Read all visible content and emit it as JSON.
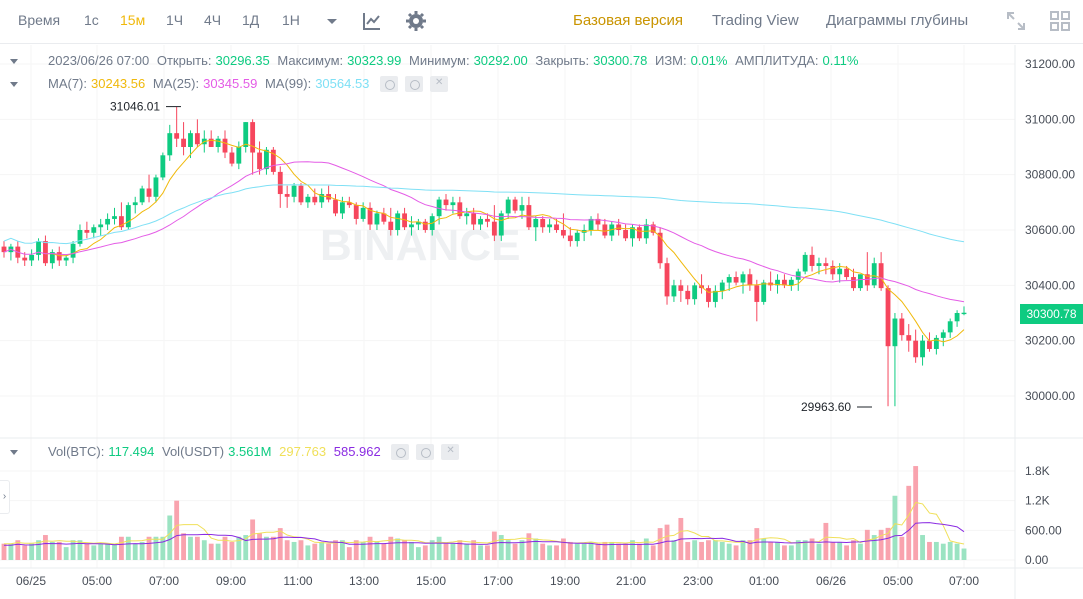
{
  "toolbar": {
    "time_label": "Время",
    "intervals": [
      "1с",
      "15м",
      "1Ч",
      "4Ч",
      "1Д",
      "1Н"
    ],
    "active_interval": "15м",
    "views": [
      "Базовая версия",
      "Trading View",
      "Диаграммы глубины"
    ],
    "active_view": "Базовая версия"
  },
  "ohlc": {
    "date": "2023/06/26 07:00",
    "open_label": "Открыть:",
    "open": "30296.35",
    "high_label": "Максимум:",
    "high": "30323.99",
    "low_label": "Минимум:",
    "low": "30292.00",
    "close_label": "Закрыть:",
    "close": "30300.78",
    "change_label": "ИЗМ:",
    "change": "0.01%",
    "amplitude_label": "АМПЛИТУДА:",
    "amplitude": "0.11%"
  },
  "ma": {
    "ma7_label": "MA(7):",
    "ma7": "30243.56",
    "ma25_label": "MA(25):",
    "ma25": "30345.59",
    "ma99_label": "MA(99):",
    "ma99": "30564.53"
  },
  "vol": {
    "btc_label": "Vol(BTC):",
    "btc": "117.494",
    "usdt_label": "Vol(USDT)",
    "usdt": "3.561M",
    "v1": "297.763",
    "v2": "585.962"
  },
  "watermark": "BINANCE",
  "current_price": "30300.78",
  "max_marker": "31046.01",
  "min_marker": "29963.60",
  "colors": {
    "up": "#0ecb81",
    "down": "#f6465d",
    "ma7": "#f0b90b",
    "ma25": "#e45ce6",
    "ma99": "#7fe0f5",
    "vol_ma1": "#f0e05a",
    "vol_ma2": "#8a2be2"
  },
  "chart_data": {
    "type": "candlestick",
    "price_axis": [
      "31200.00",
      "31000.00",
      "30800.00",
      "30600.00",
      "30400.00",
      "30200.00",
      "30000.00"
    ],
    "vol_axis": [
      "1.8K",
      "1.2K",
      "600.00",
      "0.00"
    ],
    "time_axis": [
      "06/25",
      "05:00",
      "07:00",
      "09:00",
      "11:00",
      "13:00",
      "15:00",
      "17:00",
      "19:00",
      "21:00",
      "23:00",
      "01:00",
      "06/26",
      "05:00",
      "07:00"
    ],
    "ylim": [
      29900,
      31250
    ],
    "candles": [
      [
        30540,
        30560,
        30500,
        30520
      ],
      [
        30520,
        30550,
        30490,
        30540
      ],
      [
        30540,
        30560,
        30480,
        30500
      ],
      [
        30500,
        30520,
        30470,
        30490
      ],
      [
        30490,
        30530,
        30470,
        30510
      ],
      [
        30510,
        30570,
        30490,
        30560
      ],
      [
        30560,
        30580,
        30470,
        30480
      ],
      [
        30480,
        30530,
        30460,
        30520
      ],
      [
        30520,
        30540,
        30470,
        30490
      ],
      [
        30490,
        30510,
        30470,
        30500
      ],
      [
        30500,
        30560,
        30480,
        30550
      ],
      [
        30550,
        30620,
        30540,
        30600
      ],
      [
        30600,
        30630,
        30570,
        30590
      ],
      [
        30590,
        30620,
        30570,
        30610
      ],
      [
        30610,
        30640,
        30580,
        30620
      ],
      [
        30620,
        30660,
        30600,
        30640
      ],
      [
        30640,
        30680,
        30620,
        30650
      ],
      [
        30650,
        30700,
        30600,
        30610
      ],
      [
        30610,
        30700,
        30600,
        30690
      ],
      [
        30690,
        30720,
        30660,
        30700
      ],
      [
        30700,
        30760,
        30690,
        30750
      ],
      [
        30750,
        30800,
        30700,
        30720
      ],
      [
        30720,
        30800,
        30700,
        30790
      ],
      [
        30790,
        30880,
        30780,
        30870
      ],
      [
        30870,
        30980,
        30850,
        30950
      ],
      [
        30950,
        31046,
        30900,
        30930
      ],
      [
        30930,
        30990,
        30870,
        30900
      ],
      [
        30900,
        30960,
        30860,
        30950
      ],
      [
        30950,
        31000,
        30900,
        30910
      ],
      [
        30910,
        30960,
        30880,
        30930
      ],
      [
        30930,
        30960,
        30900,
        30900
      ],
      [
        30900,
        30940,
        30880,
        30930
      ],
      [
        30930,
        30960,
        30860,
        30880
      ],
      [
        30880,
        30900,
        30830,
        30840
      ],
      [
        30840,
        30920,
        30820,
        30900
      ],
      [
        30900,
        30990,
        30880,
        30990
      ],
      [
        30990,
        31000,
        30800,
        30880
      ],
      [
        30880,
        30920,
        30800,
        30820
      ],
      [
        30820,
        30900,
        30800,
        30890
      ],
      [
        30890,
        30900,
        30800,
        30810
      ],
      [
        30810,
        30830,
        30680,
        30730
      ],
      [
        30730,
        30760,
        30680,
        30720
      ],
      [
        30720,
        30770,
        30700,
        30760
      ],
      [
        30760,
        30770,
        30690,
        30700
      ],
      [
        30700,
        30730,
        30680,
        30720
      ],
      [
        30720,
        30750,
        30690,
        30700
      ],
      [
        30700,
        30750,
        30680,
        30730
      ],
      [
        30730,
        30760,
        30700,
        30710
      ],
      [
        30710,
        30730,
        30650,
        30660
      ],
      [
        30660,
        30720,
        30640,
        30700
      ],
      [
        30700,
        30720,
        30680,
        30690
      ],
      [
        30690,
        30700,
        30620,
        30640
      ],
      [
        30640,
        30700,
        30630,
        30680
      ],
      [
        30680,
        30700,
        30600,
        30620
      ],
      [
        30620,
        30670,
        30600,
        30660
      ],
      [
        30660,
        30680,
        30620,
        30630
      ],
      [
        30630,
        30680,
        30580,
        30600
      ],
      [
        30600,
        30670,
        30580,
        30660
      ],
      [
        30660,
        30680,
        30600,
        30610
      ],
      [
        30610,
        30650,
        30580,
        30620
      ],
      [
        30620,
        30640,
        30600,
        30630
      ],
      [
        30630,
        30640,
        30590,
        30600
      ],
      [
        30600,
        30660,
        30580,
        30650
      ],
      [
        30650,
        30720,
        30620,
        30710
      ],
      [
        30710,
        30730,
        30670,
        30690
      ],
      [
        30690,
        30720,
        30660,
        30700
      ],
      [
        30700,
        30720,
        30640,
        30650
      ],
      [
        30650,
        30680,
        30620,
        30660
      ],
      [
        30660,
        30680,
        30600,
        30620
      ],
      [
        30620,
        30650,
        30600,
        30640
      ],
      [
        30640,
        30660,
        30610,
        30630
      ],
      [
        30630,
        30690,
        30560,
        30580
      ],
      [
        30580,
        30670,
        30560,
        30660
      ],
      [
        30660,
        30720,
        30640,
        30710
      ],
      [
        30710,
        30720,
        30660,
        30670
      ],
      [
        30670,
        30720,
        30640,
        30690
      ],
      [
        30690,
        30720,
        30600,
        30610
      ],
      [
        30610,
        30650,
        30560,
        30640
      ],
      [
        30640,
        30650,
        30590,
        30610
      ],
      [
        30610,
        30640,
        30590,
        30620
      ],
      [
        30620,
        30640,
        30590,
        30600
      ],
      [
        30600,
        30660,
        30570,
        30580
      ],
      [
        30580,
        30610,
        30540,
        30560
      ],
      [
        30560,
        30600,
        30540,
        30590
      ],
      [
        30590,
        30620,
        30560,
        30600
      ],
      [
        30600,
        30650,
        30580,
        30640
      ],
      [
        30640,
        30660,
        30600,
        30620
      ],
      [
        30620,
        30640,
        30570,
        30580
      ],
      [
        30580,
        30630,
        30560,
        30620
      ],
      [
        30620,
        30640,
        30580,
        30600
      ],
      [
        30600,
        30620,
        30560,
        30570
      ],
      [
        30570,
        30620,
        30540,
        30610
      ],
      [
        30610,
        30620,
        30560,
        30570
      ],
      [
        30570,
        30640,
        30550,
        30620
      ],
      [
        30620,
        30630,
        30580,
        30590
      ],
      [
        30590,
        30610,
        30460,
        30480
      ],
      [
        30480,
        30500,
        30330,
        30360
      ],
      [
        30360,
        30420,
        30340,
        30400
      ],
      [
        30400,
        30420,
        30340,
        30380
      ],
      [
        30380,
        30400,
        30330,
        30350
      ],
      [
        30350,
        30410,
        30330,
        30400
      ],
      [
        30400,
        30440,
        30370,
        30390
      ],
      [
        30390,
        30400,
        30320,
        30340
      ],
      [
        30340,
        30400,
        30320,
        30380
      ],
      [
        30380,
        30420,
        30350,
        30410
      ],
      [
        30410,
        30440,
        30380,
        30430
      ],
      [
        30430,
        30450,
        30400,
        30410
      ],
      [
        30410,
        30450,
        30370,
        30440
      ],
      [
        30440,
        30460,
        30380,
        30400
      ],
      [
        30400,
        30420,
        30270,
        30340
      ],
      [
        30340,
        30420,
        30330,
        30410
      ],
      [
        30410,
        30450,
        30380,
        30400
      ],
      [
        30400,
        30440,
        30370,
        30420
      ],
      [
        30420,
        30440,
        30390,
        30400
      ],
      [
        30400,
        30430,
        30380,
        30420
      ],
      [
        30420,
        30460,
        30380,
        30450
      ],
      [
        30450,
        30520,
        30440,
        30510
      ],
      [
        30510,
        30540,
        30450,
        30470
      ],
      [
        30470,
        30500,
        30440,
        30480
      ],
      [
        30480,
        30500,
        30440,
        30470
      ],
      [
        30470,
        30490,
        30420,
        30440
      ],
      [
        30440,
        30480,
        30410,
        30460
      ],
      [
        30460,
        30470,
        30420,
        30430
      ],
      [
        30430,
        30460,
        30380,
        30390
      ],
      [
        30390,
        30440,
        30380,
        30440
      ],
      [
        30440,
        30520,
        30380,
        30400
      ],
      [
        30400,
        30500,
        30390,
        30480
      ],
      [
        30480,
        30520,
        30380,
        30390
      ],
      [
        30390,
        30400,
        29963,
        30180
      ],
      [
        30180,
        30300,
        29963,
        30280
      ],
      [
        30280,
        30300,
        30200,
        30220
      ],
      [
        30220,
        30260,
        30160,
        30200
      ],
      [
        30200,
        30240,
        30120,
        30140
      ],
      [
        30140,
        30220,
        30110,
        30200
      ],
      [
        30200,
        30230,
        30160,
        30170
      ],
      [
        30170,
        30220,
        30150,
        30210
      ],
      [
        30210,
        30240,
        30180,
        30230
      ],
      [
        30230,
        30280,
        30210,
        30270
      ],
      [
        30270,
        30310,
        30250,
        30300
      ],
      [
        30296,
        30324,
        30292,
        30301
      ]
    ]
  }
}
